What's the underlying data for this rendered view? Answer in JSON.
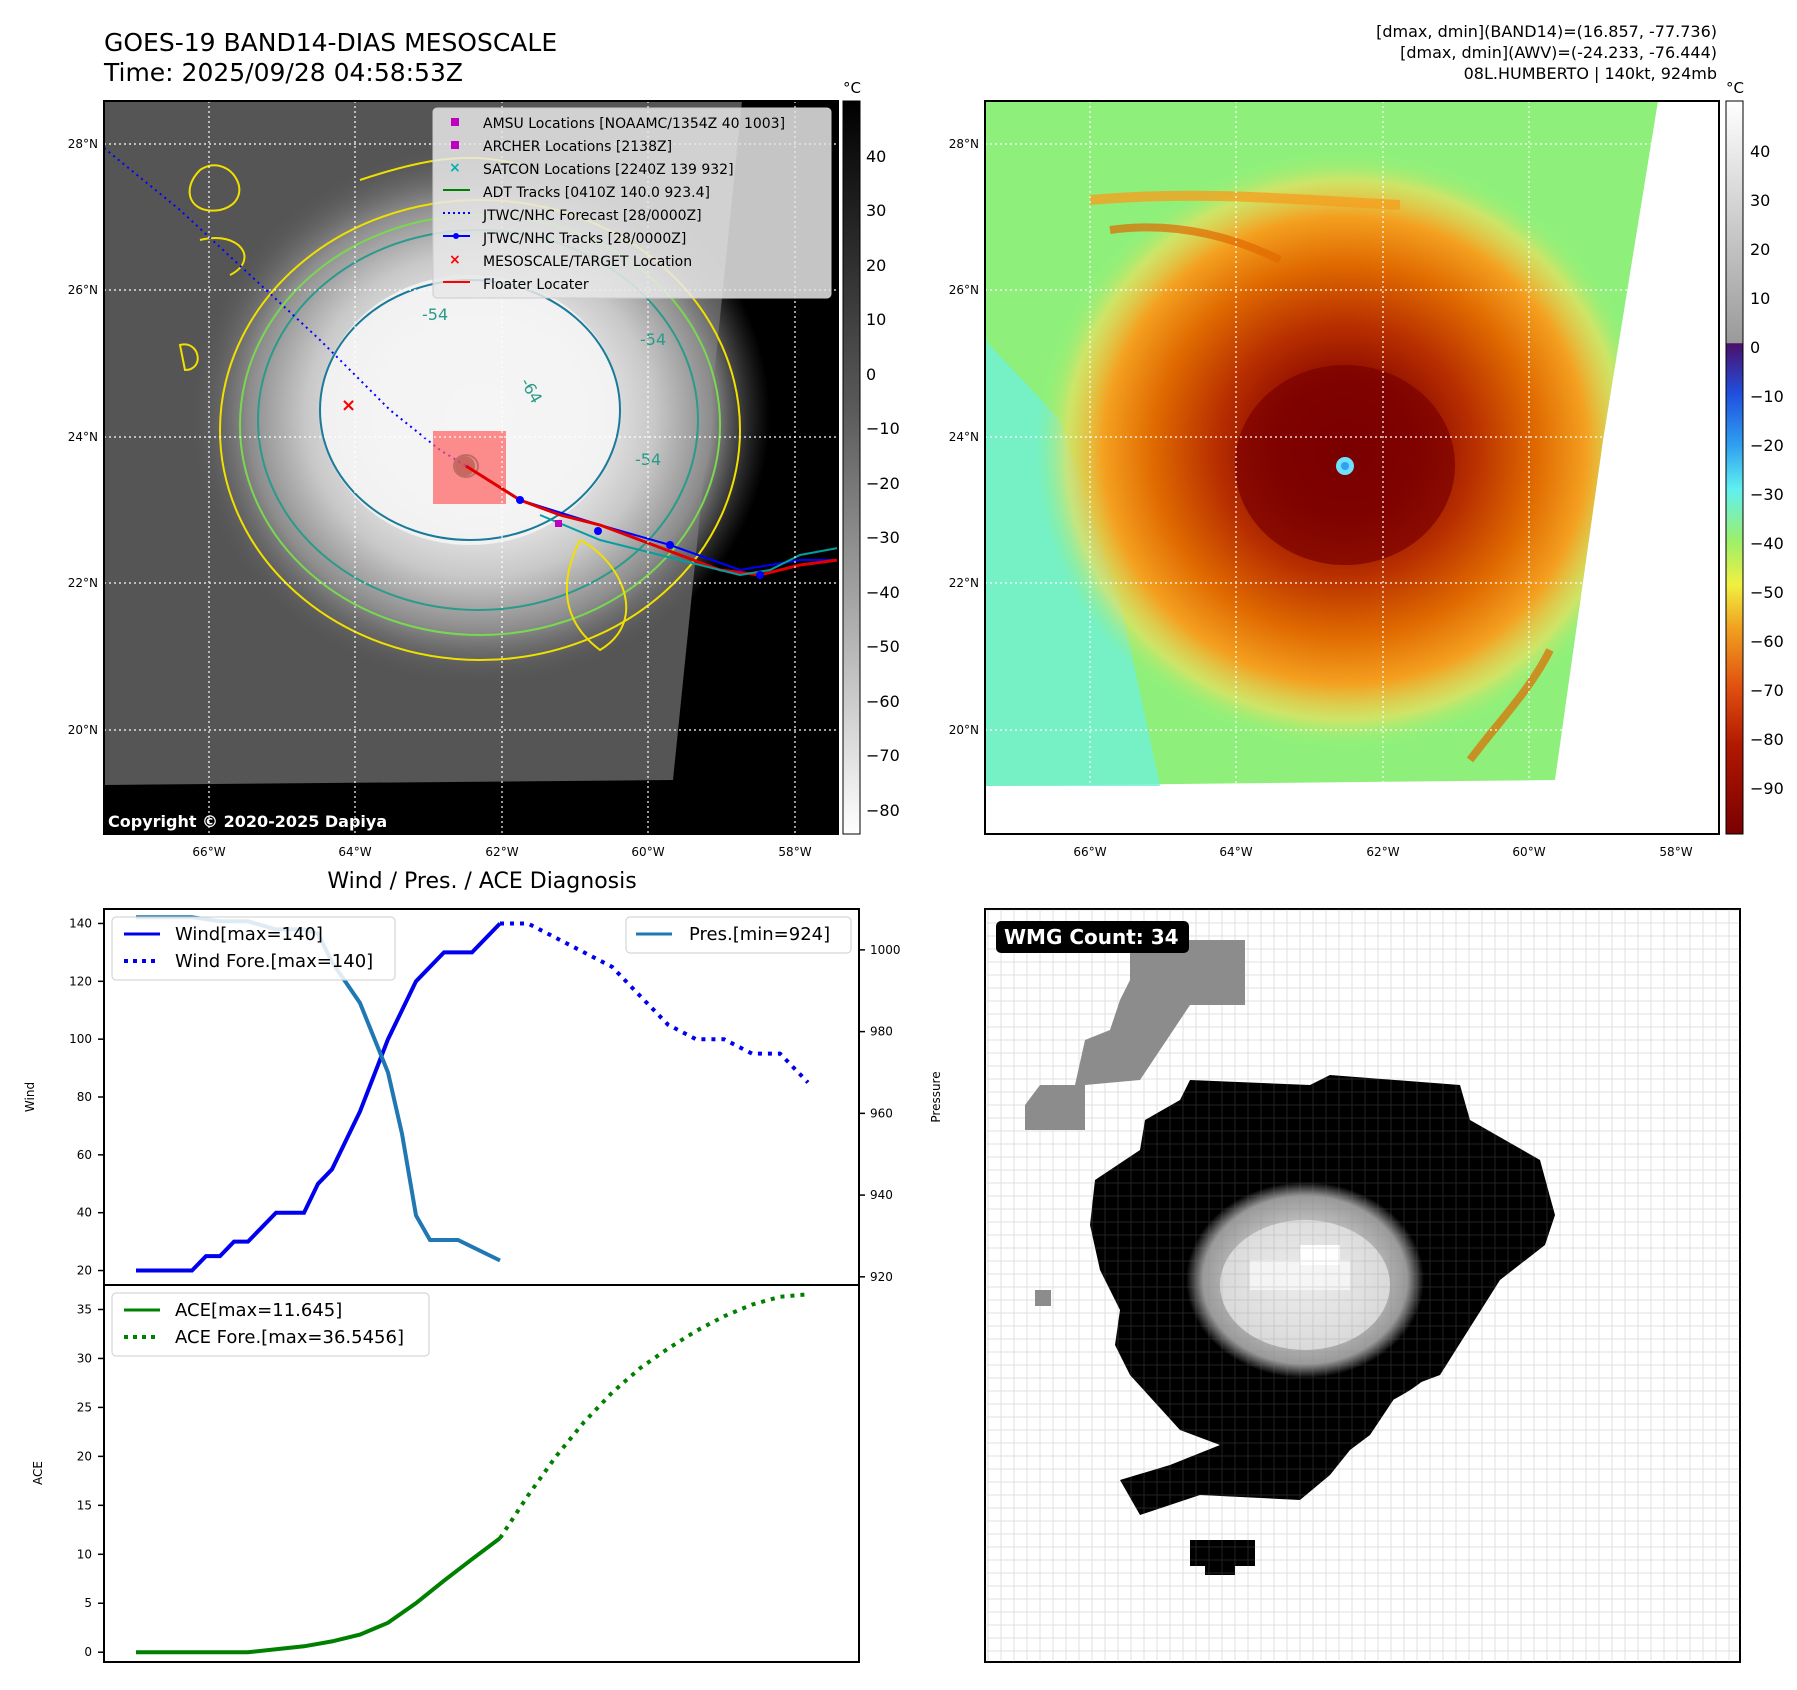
{
  "header": {
    "title": "GOES-19 BAND14-DIAS MESOSCALE",
    "time": "Time: 2025/09/28 04:58:53Z",
    "dmax_band14": "[dmax, dmin](BAND14)=(16.857, -77.736)",
    "dmax_awv": "[dmax, dmin](AWV)=(-24.233, -76.444)",
    "storm": "08L.HUMBERTO | 140kt, 924mb"
  },
  "map": {
    "lat_labels": [
      "28°N",
      "26°N",
      "24°N",
      "22°N",
      "20°N"
    ],
    "lon_labels": [
      "66°W",
      "64°W",
      "62°W",
      "60°W",
      "58°W"
    ],
    "copyright": "Copyright © 2020-2025 Dapiya",
    "contour_labels": [
      "-54",
      "-64",
      "-54",
      "-54"
    ],
    "legend": [
      {
        "label": "AMSU Locations [NOAAMC/1354Z 40 1003]",
        "color": "#c000c0"
      },
      {
        "label": "ARCHER Locations [2138Z]",
        "color": "#c000c0"
      },
      {
        "label": "SATCON Locations [2240Z 139 932]",
        "color": "#00b0b0"
      },
      {
        "label": "ADT Tracks [0410Z 140.0 923.4]",
        "color": "#008000"
      },
      {
        "label": "JTWC/NHC Forecast [28/0000Z]",
        "color": "#0000ff"
      },
      {
        "label": "JTWC/NHC Tracks [28/0000Z]",
        "color": "#0000ff"
      },
      {
        "label": "MESOSCALE/TARGET Location",
        "color": "#ff0000"
      },
      {
        "label": "Floater Locater",
        "color": "#ff0000"
      }
    ]
  },
  "colorbar_gray": {
    "unit": "°C",
    "ticks": [
      "40",
      "30",
      "20",
      "10",
      "0",
      "−10",
      "−20",
      "−30",
      "−40",
      "−50",
      "−60",
      "−70",
      "−80"
    ]
  },
  "colorbar_color": {
    "unit": "°C",
    "ticks": [
      "40",
      "30",
      "20",
      "10",
      "0",
      "−10",
      "−20",
      "−30",
      "−40",
      "−50",
      "−60",
      "−70",
      "−80",
      "−90"
    ]
  },
  "diagnosis": {
    "title": "Wind / Pres. / ACE Diagnosis",
    "wind_axis_label": "Wind",
    "pressure_axis_label": "Pressure",
    "ace_axis_label": "ACE",
    "legend_wind": "Wind[max=140]",
    "legend_wind_fore": "Wind Fore.[max=140]",
    "legend_pres": "Pres.[min=924]",
    "legend_ace": "ACE[max=11.645]",
    "legend_ace_fore": "ACE Fore.[max=36.5456]"
  },
  "wmg": {
    "label": "WMG Count: 34"
  },
  "chart_data": [
    {
      "type": "line",
      "title": "Wind / Pres. / ACE Diagnosis",
      "ylabel": "Wind",
      "ylim": [
        15,
        145
      ],
      "yticks": [
        20,
        40,
        60,
        80,
        100,
        120,
        140
      ],
      "xlim": [
        0,
        50
      ],
      "series": [
        {
          "name": "Wind[max=140]",
          "color": "#0000ee",
          "style": "solid",
          "x": [
            0,
            4,
            5,
            6,
            7,
            8,
            9,
            10,
            12,
            13,
            14,
            15,
            16,
            18,
            20,
            22,
            24,
            26
          ],
          "values": [
            20,
            20,
            25,
            25,
            30,
            30,
            35,
            40,
            40,
            50,
            55,
            65,
            75,
            100,
            120,
            130,
            130,
            140
          ]
        },
        {
          "name": "Wind Fore.[max=140]",
          "color": "#0000ee",
          "style": "dotted",
          "x": [
            26,
            28,
            30,
            32,
            34,
            36,
            38,
            40,
            42,
            44,
            46,
            48
          ],
          "values": [
            140,
            140,
            135,
            130,
            125,
            115,
            105,
            100,
            100,
            95,
            95,
            85
          ]
        }
      ]
    },
    {
      "type": "line",
      "ylabel": "Pressure",
      "ylim": [
        918,
        1010
      ],
      "yticks": [
        920,
        940,
        960,
        980,
        1000
      ],
      "xlim": [
        0,
        50
      ],
      "series": [
        {
          "name": "Pres.[min=924]",
          "color": "#1f77b4",
          "style": "solid",
          "x": [
            0,
            2,
            4,
            6,
            8,
            10,
            12,
            13,
            14,
            16,
            18,
            19,
            20,
            21,
            22,
            23,
            26
          ],
          "values": [
            1008,
            1008,
            1008,
            1007,
            1007,
            1005,
            1005,
            1004,
            997,
            987,
            970,
            955,
            935,
            929,
            929,
            929,
            924
          ]
        }
      ]
    },
    {
      "type": "line",
      "ylabel": "ACE",
      "ylim": [
        -1,
        37.5
      ],
      "yticks": [
        0,
        5,
        10,
        15,
        20,
        25,
        30,
        35
      ],
      "xlim": [
        0,
        50
      ],
      "series": [
        {
          "name": "ACE[max=11.645]",
          "color": "#008000",
          "style": "solid",
          "x": [
            0,
            4,
            8,
            10,
            12,
            14,
            16,
            18,
            20,
            22,
            24,
            26
          ],
          "values": [
            0,
            0,
            0,
            0.3,
            0.6,
            1.1,
            1.8,
            3.0,
            5.0,
            7.3,
            9.5,
            11.645
          ]
        },
        {
          "name": "ACE Fore.[max=36.5456]",
          "color": "#008000",
          "style": "dotted",
          "x": [
            26,
            28,
            30,
            32,
            34,
            36,
            38,
            40,
            42,
            44,
            46,
            48
          ],
          "values": [
            11.645,
            16.0,
            20.0,
            23.5,
            26.5,
            29.0,
            31.0,
            32.8,
            34.3,
            35.5,
            36.3,
            36.5456
          ]
        }
      ]
    }
  ]
}
